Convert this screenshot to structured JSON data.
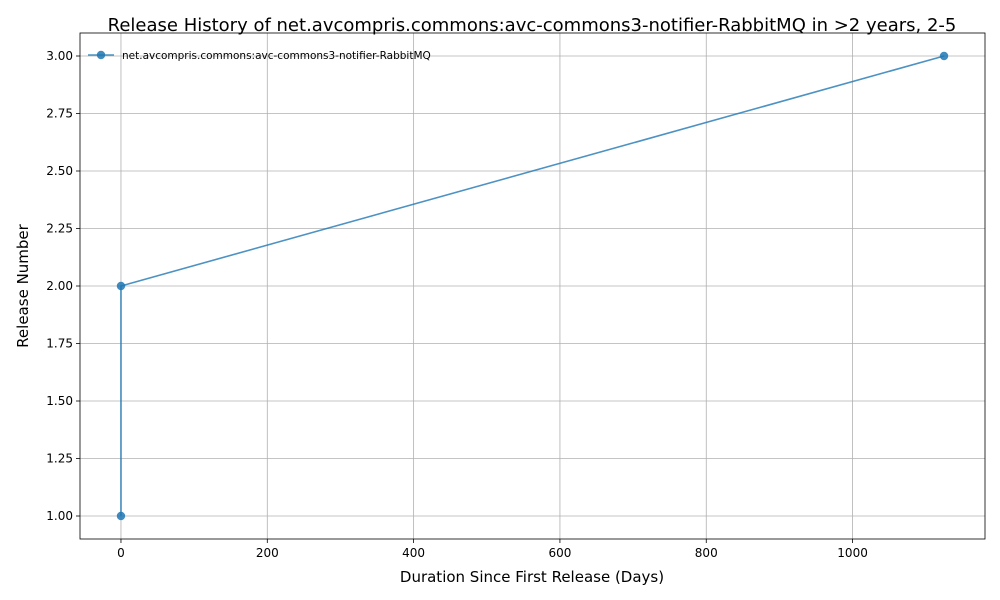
{
  "chart_data": {
    "type": "line",
    "title": "Release History of net.avcompris.commons:avc-commons3-notifier-RabbitMQ in >2 years, 2-5",
    "xlabel": "Duration Since First Release (Days)",
    "ylabel": "Release Number",
    "xlim": [
      -56,
      1181
    ],
    "ylim": [
      0.9,
      3.1
    ],
    "x_ticks": [
      {
        "value": 0,
        "label": "0"
      },
      {
        "value": 200,
        "label": "200"
      },
      {
        "value": 400,
        "label": "400"
      },
      {
        "value": 600,
        "label": "600"
      },
      {
        "value": 800,
        "label": "800"
      },
      {
        "value": 1000,
        "label": "1000"
      }
    ],
    "y_ticks": [
      {
        "value": 1.0,
        "label": "1.00"
      },
      {
        "value": 1.25,
        "label": "1.25"
      },
      {
        "value": 1.5,
        "label": "1.50"
      },
      {
        "value": 1.75,
        "label": "1.75"
      },
      {
        "value": 2.0,
        "label": "2.00"
      },
      {
        "value": 2.25,
        "label": "2.25"
      },
      {
        "value": 2.5,
        "label": "2.50"
      },
      {
        "value": 2.75,
        "label": "2.75"
      },
      {
        "value": 3.0,
        "label": "3.00"
      }
    ],
    "grid": true,
    "legend_position": "top-left",
    "series": [
      {
        "name": "net.avcompris.commons:avc-commons3-notifier-RabbitMQ",
        "color": "#1f77b4",
        "x": [
          0,
          0,
          1125
        ],
        "y": [
          1,
          2,
          3
        ]
      }
    ]
  }
}
